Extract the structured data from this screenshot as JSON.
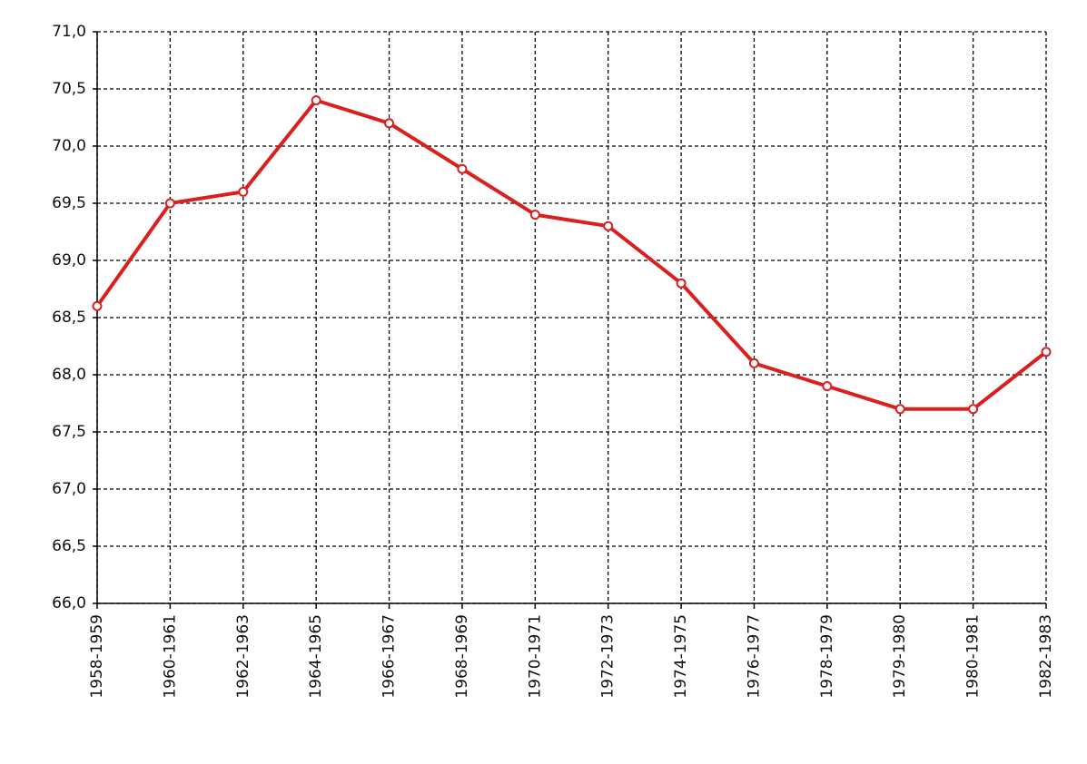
{
  "chart_data": {
    "type": "line",
    "categories": [
      "1958-1959",
      "1960-1961",
      "1962-1963",
      "1964-1965",
      "1966-1967",
      "1968-1969",
      "1970-1971",
      "1972-1973",
      "1974-1975",
      "1976-1977",
      "1978-1979",
      "1979-1980",
      "1980-1981",
      "1982-1983"
    ],
    "values": [
      68.6,
      69.5,
      69.6,
      70.4,
      70.2,
      69.8,
      69.4,
      69.3,
      68.8,
      68.1,
      67.9,
      67.7,
      67.7,
      68.2
    ],
    "color": "#d9201f",
    "ylim": [
      66,
      71
    ],
    "yticks": [
      {
        "value": 66,
        "label": "66,0"
      },
      {
        "value": 66.5,
        "label": "66,5"
      },
      {
        "value": 67,
        "label": "67,0"
      },
      {
        "value": 67.5,
        "label": "67,5"
      },
      {
        "value": 68,
        "label": "68,0"
      },
      {
        "value": 68.5,
        "label": "68,5"
      },
      {
        "value": 69,
        "label": "69,0"
      },
      {
        "value": 69.5,
        "label": "69,5"
      },
      {
        "value": 70,
        "label": "70,0"
      },
      {
        "value": 70.5,
        "label": "70,5"
      },
      {
        "value": 71,
        "label": "71,0"
      }
    ],
    "grid": true
  }
}
